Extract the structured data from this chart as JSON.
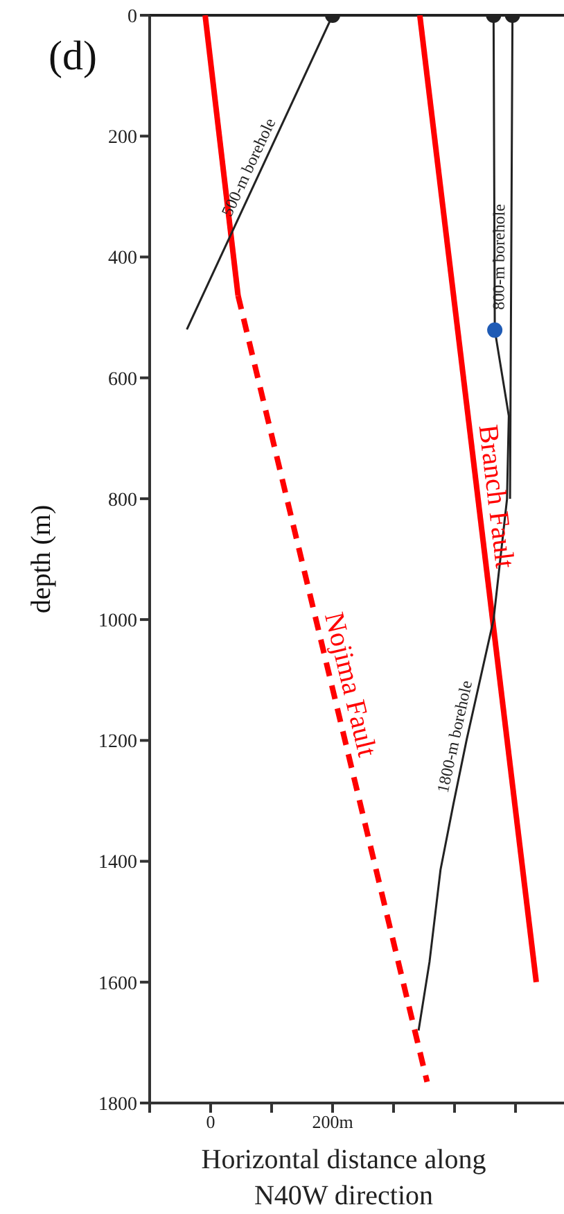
{
  "chart_data": {
    "type": "line",
    "xlabel": "Horizontal distance along N40W direction",
    "ylabel": "depth (m)",
    "xlim": [
      -100,
      579.5
    ],
    "xticks": [
      {
        "value": -100,
        "label": null
      },
      0,
      {
        "value": 100,
        "label": null
      },
      {
        "value": 200,
        "label": "200m"
      },
      {
        "value": 300,
        "label": null
      },
      {
        "value": 400,
        "label": null
      },
      {
        "value": 500,
        "label": null
      }
    ],
    "ylim": [
      1800,
      0
    ],
    "yticks": [
      0,
      200,
      400,
      600,
      800,
      1000,
      1200,
      1400,
      1600,
      1800
    ],
    "grid": false,
    "marker": "none",
    "line_style": "solid",
    "ref_lines": [
      {
        "axis": "y",
        "value": 0,
        "color": "#222222"
      }
    ],
    "annotations": [
      "(d)"
    ],
    "series": [
      {
        "color": "#ff0000",
        "x": [
          -9,
          45
        ],
        "values": [
          0,
          464
        ]
      },
      {
        "name": "Nojima Fault",
        "color": "#ff0000",
        "line_style": "dashed",
        "x": [
          45,
          355
        ],
        "values": [
          464,
          1765
        ]
      },
      {
        "name": "Branch Fault",
        "color": "#ff0000",
        "x": [
          343,
          534
        ],
        "values": [
          0,
          1600
        ]
      },
      {
        "name": "500-m borehole",
        "color": "#222222",
        "x": [
          200,
          -39
        ],
        "values": [
          0,
          520
        ]
      },
      {
        "name": "800-m borehole",
        "color": "#222222",
        "x": [
          495,
          493,
          491
        ],
        "values": [
          0,
          400,
          800
        ]
      },
      {
        "name": "1800-m borehole",
        "color": "#222222",
        "x": [
          464,
          466,
          489,
          486,
          464,
          420,
          398,
          377,
          359,
          341
        ],
        "values": [
          0,
          521,
          663,
          801,
          1000,
          1198,
          1306,
          1414,
          1566,
          1680
        ]
      },
      {
        "type": "scatter",
        "marker": "circle",
        "color": "#222222",
        "x": [
          200,
          464,
          495
        ],
        "values": [
          0,
          0,
          0
        ]
      },
      {
        "type": "scatter",
        "marker": "circle",
        "color": "#1f5bb5",
        "x": [
          466
        ],
        "values": [
          521
        ]
      }
    ]
  }
}
